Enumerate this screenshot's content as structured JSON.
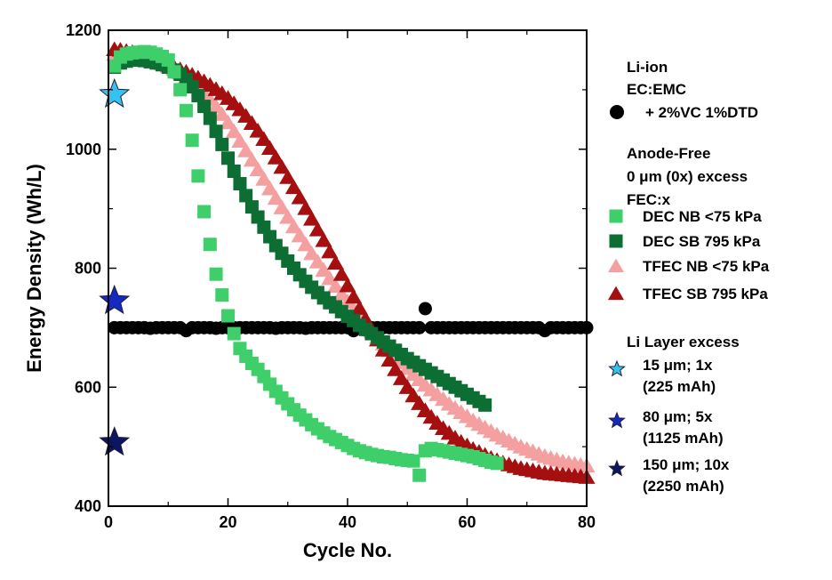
{
  "chart_data": {
    "type": "scatter",
    "xlabel": "Cycle No.",
    "ylabel": "Energy Density (Wh/L)",
    "xlim": [
      0,
      80
    ],
    "ylim": [
      400,
      1200
    ],
    "xticks": [
      0,
      20,
      40,
      60,
      80
    ],
    "yticks": [
      400,
      600,
      800,
      1000,
      1200
    ],
    "grid": false,
    "legend_position": "right",
    "legend_groups": [
      {
        "title_lines": [
          "Li-ion",
          "EC:EMC"
        ]
      },
      {
        "title_lines": [
          "Anode-Free",
          "0 μm (0x) excess",
          "FEC:x"
        ]
      },
      {
        "title_lines": [
          "Li Layer excess"
        ]
      }
    ],
    "series": [
      {
        "name": "+ 2%VC 1%DTD",
        "marker": "circle",
        "color": "#000000",
        "x": [
          1,
          2,
          3,
          4,
          5,
          6,
          7,
          8,
          9,
          10,
          11,
          12,
          13,
          14,
          15,
          16,
          17,
          18,
          19,
          20,
          21,
          22,
          23,
          24,
          25,
          26,
          27,
          28,
          29,
          30,
          31,
          32,
          33,
          34,
          35,
          36,
          37,
          38,
          39,
          40,
          41,
          42,
          43,
          44,
          45,
          46,
          47,
          48,
          49,
          50,
          51,
          52,
          53,
          54,
          55,
          56,
          57,
          58,
          59,
          60,
          61,
          62,
          63,
          64,
          65,
          66,
          67,
          68,
          69,
          70,
          71,
          72,
          73,
          74,
          75,
          76,
          77,
          78,
          79,
          80
        ],
        "y": [
          700,
          700,
          700,
          700,
          700,
          700,
          699,
          700,
          700,
          700,
          700,
          700,
          695,
          700,
          700,
          700,
          700,
          699,
          700,
          700,
          700,
          700,
          700,
          700,
          700,
          700,
          700,
          699,
          700,
          700,
          700,
          700,
          699,
          700,
          700,
          700,
          700,
          700,
          700,
          700,
          695,
          700,
          700,
          700,
          700,
          700,
          700,
          700,
          700,
          700,
          700,
          700,
          732,
          700,
          700,
          700,
          700,
          700,
          700,
          700,
          700,
          700,
          700,
          700,
          700,
          700,
          700,
          700,
          700,
          700,
          700,
          700,
          695,
          700,
          700,
          700,
          700,
          700,
          700,
          700
        ]
      },
      {
        "name": "DEC NB <75 kPa",
        "marker": "square",
        "color": "#3ecf6a",
        "x": [
          1,
          2,
          3,
          4,
          5,
          6,
          7,
          8,
          9,
          10,
          11,
          12,
          13,
          14,
          15,
          16,
          17,
          18,
          19,
          20,
          21,
          22,
          23,
          24,
          25,
          26,
          27,
          28,
          29,
          30,
          31,
          32,
          33,
          34,
          35,
          36,
          37,
          38,
          39,
          40,
          41,
          42,
          43,
          44,
          45,
          46,
          47,
          48,
          49,
          50,
          51,
          52,
          53,
          54,
          55,
          56,
          57,
          58,
          59,
          60,
          61,
          62,
          63,
          64,
          65
        ],
        "y": [
          1140,
          1155,
          1160,
          1162,
          1163,
          1164,
          1163,
          1160,
          1156,
          1150,
          1130,
          1100,
          1065,
          1015,
          955,
          895,
          840,
          790,
          755,
          720,
          690,
          665,
          652,
          640,
          630,
          618,
          605,
          593,
          582,
          572,
          562,
          553,
          545,
          537,
          530,
          523,
          517,
          512,
          507,
          502,
          497,
          493,
          490,
          487,
          485,
          483,
          482,
          480,
          478,
          477,
          476,
          452,
          493,
          497,
          495,
          493,
          491,
          489,
          487,
          485,
          483,
          480,
          477,
          474,
          472
        ]
      },
      {
        "name": "DEC SB 795 kPa",
        "marker": "square",
        "color": "#0c6e32",
        "x": [
          1,
          2,
          3,
          4,
          5,
          6,
          7,
          8,
          9,
          10,
          11,
          12,
          13,
          14,
          15,
          16,
          17,
          18,
          19,
          20,
          21,
          22,
          23,
          24,
          25,
          26,
          27,
          28,
          29,
          30,
          31,
          32,
          33,
          34,
          35,
          36,
          37,
          38,
          39,
          40,
          41,
          42,
          43,
          44,
          45,
          46,
          47,
          48,
          49,
          50,
          51,
          52,
          53,
          54,
          55,
          56,
          57,
          58,
          59,
          60,
          61,
          62,
          63
        ],
        "y": [
          1138,
          1145,
          1148,
          1150,
          1150,
          1149,
          1147,
          1145,
          1142,
          1138,
          1133,
          1126,
          1117,
          1105,
          1090,
          1072,
          1052,
          1030,
          1008,
          985,
          963,
          942,
          922,
          903,
          886,
          869,
          853,
          838,
          825,
          812,
          800,
          789,
          778,
          768,
          759,
          750,
          742,
          735,
          727,
          719,
          712,
          704,
          697,
          690,
          683,
          676,
          669,
          662,
          655,
          648,
          642,
          636,
          630,
          624,
          618,
          612,
          606,
          600,
          594,
          588,
          582,
          576,
          570
        ]
      },
      {
        "name": "TFEC NB <75 kPa",
        "marker": "triangle",
        "color": "#f5a0a0",
        "x": [
          1,
          2,
          3,
          4,
          5,
          6,
          7,
          8,
          9,
          10,
          11,
          12,
          13,
          14,
          15,
          16,
          17,
          18,
          19,
          20,
          21,
          22,
          23,
          24,
          25,
          26,
          27,
          28,
          29,
          30,
          31,
          32,
          33,
          34,
          35,
          36,
          37,
          38,
          39,
          40,
          41,
          42,
          43,
          44,
          45,
          46,
          47,
          48,
          49,
          50,
          51,
          52,
          53,
          54,
          55,
          56,
          57,
          58,
          59,
          60,
          61,
          62,
          63,
          64,
          65,
          66,
          67,
          68,
          69,
          70,
          71,
          72,
          73,
          74,
          75,
          76,
          77,
          78,
          79,
          80
        ],
        "y": [
          1160,
          1160,
          1159,
          1158,
          1156,
          1154,
          1151,
          1148,
          1144,
          1140,
          1135,
          1129,
          1122,
          1114,
          1105,
          1095,
          1084,
          1072,
          1059,
          1045,
          1030,
          1014,
          998,
          982,
          966,
          950,
          934,
          918,
          902,
          886,
          870,
          855,
          840,
          825,
          811,
          797,
          783,
          770,
          757,
          744,
          731,
          719,
          707,
          695,
          684,
          673,
          662,
          652,
          642,
          632,
          622,
          613,
          604,
          596,
          588,
          580,
          572,
          565,
          558,
          551,
          544,
          538,
          532,
          526,
          520,
          515,
          510,
          505,
          500,
          496,
          492,
          488,
          484,
          481,
          478,
          475,
          473,
          471,
          469,
          468
        ]
      },
      {
        "name": "TFEC SB 795 kPa",
        "marker": "triangle",
        "color": "#a50f0f",
        "x": [
          1,
          2,
          3,
          4,
          5,
          6,
          7,
          8,
          9,
          10,
          11,
          12,
          13,
          14,
          15,
          16,
          17,
          18,
          19,
          20,
          21,
          22,
          23,
          24,
          25,
          26,
          27,
          28,
          29,
          30,
          31,
          32,
          33,
          34,
          35,
          36,
          37,
          38,
          39,
          40,
          41,
          42,
          43,
          44,
          45,
          46,
          47,
          48,
          49,
          50,
          51,
          52,
          53,
          54,
          55,
          56,
          57,
          58,
          59,
          60,
          61,
          62,
          63,
          64,
          65,
          66,
          67,
          68,
          69,
          70,
          71,
          72,
          73,
          74,
          75,
          76,
          77,
          78,
          79,
          80
        ],
        "y": [
          1168,
          1167,
          1165,
          1163,
          1160,
          1157,
          1154,
          1150,
          1146,
          1142,
          1138,
          1134,
          1130,
          1125,
          1120,
          1114,
          1108,
          1101,
          1094,
          1086,
          1077,
          1067,
          1056,
          1044,
          1031,
          1017,
          1002,
          986,
          970,
          953,
          936,
          919,
          901,
          883,
          865,
          847,
          828,
          809,
          790,
          771,
          752,
          733,
          715,
          697,
          680,
          663,
          646,
          630,
          615,
          600,
          586,
          573,
          561,
          550,
          540,
          531,
          523,
          515,
          508,
          502,
          496,
          491,
          486,
          481,
          477,
          473,
          470,
          467,
          464,
          462,
          460,
          458,
          456,
          455,
          454,
          453,
          452,
          451,
          450,
          449
        ]
      },
      {
        "name": "15 μm; 1x (225 mAh)",
        "marker": "star",
        "color": "#33c3ee",
        "x": [
          1
        ],
        "y": [
          1092
        ]
      },
      {
        "name": "80 μm; 5x (1125 mAh)",
        "marker": "star",
        "color": "#1528c0",
        "x": [
          1
        ],
        "y": [
          745
        ]
      },
      {
        "name": "150 μm; 10x (2250 mAh)",
        "marker": "star",
        "color": "#0d1560",
        "x": [
          1
        ],
        "y": [
          507
        ]
      }
    ]
  }
}
